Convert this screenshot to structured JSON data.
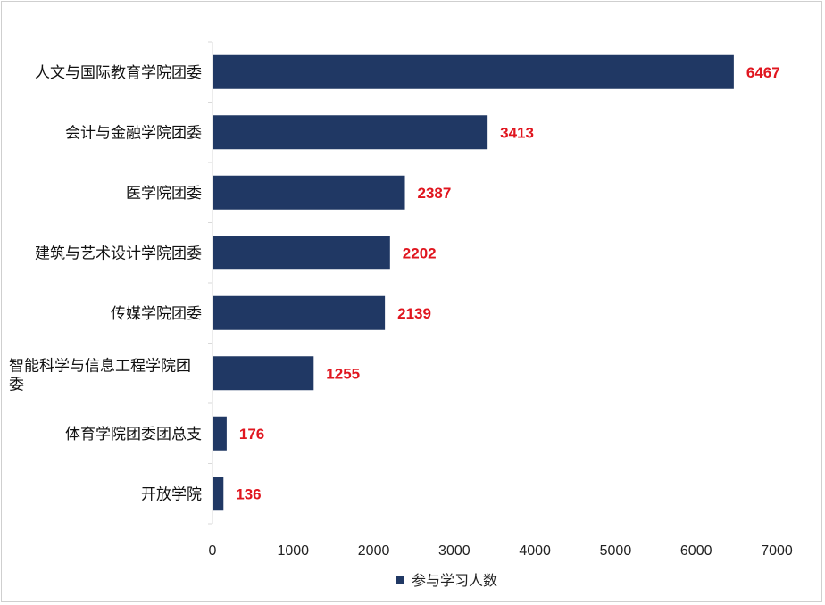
{
  "chart_data": {
    "type": "bar",
    "orientation": "horizontal",
    "categories": [
      "人文与国际教育学院团委",
      "会计与金融学院团委",
      "医学院团委",
      "建筑与艺术设计学院团委",
      "传媒学院团委",
      "智能科学与信息工程学院团委",
      "体育学院团委团总支",
      "开放学院"
    ],
    "series": [
      {
        "name": "参与学习人数",
        "values": [
          6467,
          3413,
          2387,
          2202,
          2139,
          1255,
          176,
          136
        ],
        "color": "#203864"
      }
    ],
    "xlim": [
      0,
      7000
    ],
    "xticks": [
      0,
      1000,
      2000,
      3000,
      4000,
      5000,
      6000,
      7000
    ],
    "data_label_color": "#e0161f",
    "legend_position": "bottom",
    "grid": false
  }
}
